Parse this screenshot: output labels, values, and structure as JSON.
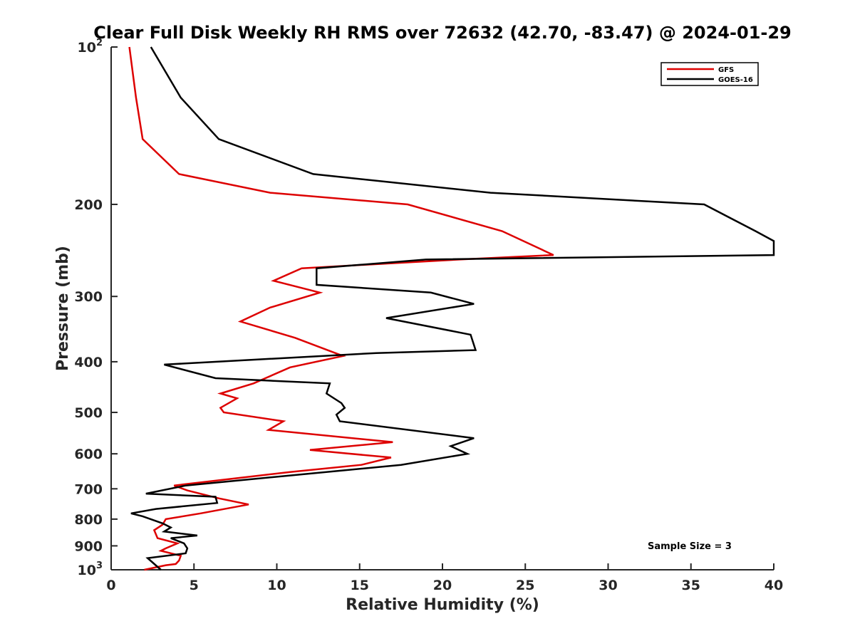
{
  "chart_data": {
    "type": "line",
    "title": "Clear Full Disk Weekly RH RMS over 72632 (42.70, -83.47) @ 2024-01-29",
    "xlabel": "Relative Humidity (%)",
    "ylabel": "Pressure (mb)",
    "xlim": [
      0,
      40
    ],
    "ylim": [
      100,
      1000
    ],
    "y_scale": "log",
    "y_reversed": true,
    "x_ticks": [
      0,
      5,
      10,
      15,
      20,
      25,
      30,
      35,
      40
    ],
    "y_ticks": [
      {
        "value": 100,
        "base": "10",
        "sup": "2"
      },
      {
        "value": 200,
        "label": "200"
      },
      {
        "value": 300,
        "label": "300"
      },
      {
        "value": 400,
        "label": "400"
      },
      {
        "value": 500,
        "label": "500"
      },
      {
        "value": 600,
        "label": "600"
      },
      {
        "value": 700,
        "label": "700"
      },
      {
        "value": 800,
        "label": "800"
      },
      {
        "value": 900,
        "label": "900"
      },
      {
        "value": 1000,
        "base": "10",
        "sup": "3"
      }
    ],
    "grid": false,
    "legend_position": "top-right",
    "annotation": "Sample Size = 3",
    "series": [
      {
        "name": "GFS",
        "color": "#dd0000",
        "points": [
          [
            1.1,
            100
          ],
          [
            1.5,
            125
          ],
          [
            1.9,
            150
          ],
          [
            4.1,
            175
          ],
          [
            9.6,
            190
          ],
          [
            17.9,
            200
          ],
          [
            23.6,
            225
          ],
          [
            26.7,
            250
          ],
          [
            21.0,
            255
          ],
          [
            11.5,
            265
          ],
          [
            9.8,
            280
          ],
          [
            12.6,
            295
          ],
          [
            9.6,
            315
          ],
          [
            7.8,
            335
          ],
          [
            11.1,
            360
          ],
          [
            14.0,
            390
          ],
          [
            10.8,
            410
          ],
          [
            8.6,
            440
          ],
          [
            6.6,
            460
          ],
          [
            7.6,
            470
          ],
          [
            6.6,
            490
          ],
          [
            6.8,
            500
          ],
          [
            10.4,
            520
          ],
          [
            9.5,
            540
          ],
          [
            17.0,
            570
          ],
          [
            12.0,
            590
          ],
          [
            16.9,
            610
          ],
          [
            15.1,
            630
          ],
          [
            10.8,
            650
          ],
          [
            3.8,
            690
          ],
          [
            4.6,
            705
          ],
          [
            6.5,
            730
          ],
          [
            8.3,
            750
          ],
          [
            5.4,
            780
          ],
          [
            3.3,
            800
          ],
          [
            3.1,
            820
          ],
          [
            2.6,
            840
          ],
          [
            2.8,
            870
          ],
          [
            4.0,
            890
          ],
          [
            3.3,
            910
          ],
          [
            3.0,
            920
          ],
          [
            4.2,
            940
          ],
          [
            4.1,
            960
          ],
          [
            3.9,
            975
          ],
          [
            3.3,
            980
          ],
          [
            2.0,
            1000
          ]
        ]
      },
      {
        "name": "GOES-16",
        "color": "#000000",
        "points": [
          [
            2.4,
            100
          ],
          [
            4.2,
            125
          ],
          [
            6.5,
            150
          ],
          [
            12.2,
            175
          ],
          [
            22.9,
            190
          ],
          [
            35.8,
            200
          ],
          [
            38.9,
            225
          ],
          [
            40.0,
            235
          ],
          [
            40.0,
            250
          ],
          [
            19.0,
            255
          ],
          [
            12.4,
            265
          ],
          [
            12.4,
            285
          ],
          [
            19.3,
            295
          ],
          [
            21.9,
            310
          ],
          [
            16.6,
            330
          ],
          [
            21.7,
            355
          ],
          [
            22.0,
            380
          ],
          [
            16.0,
            385
          ],
          [
            3.2,
            405
          ],
          [
            6.3,
            430
          ],
          [
            13.2,
            440
          ],
          [
            13.0,
            460
          ],
          [
            13.9,
            480
          ],
          [
            14.1,
            490
          ],
          [
            13.6,
            505
          ],
          [
            13.8,
            520
          ],
          [
            21.9,
            560
          ],
          [
            20.5,
            580
          ],
          [
            21.5,
            600
          ],
          [
            17.5,
            630
          ],
          [
            4.5,
            690
          ],
          [
            2.1,
            715
          ],
          [
            6.3,
            725
          ],
          [
            6.4,
            745
          ],
          [
            2.7,
            765
          ],
          [
            1.2,
            780
          ],
          [
            1.9,
            790
          ],
          [
            3.1,
            815
          ],
          [
            3.6,
            830
          ],
          [
            3.2,
            845
          ],
          [
            5.2,
            860
          ],
          [
            3.6,
            870
          ],
          [
            4.4,
            890
          ],
          [
            4.6,
            910
          ],
          [
            4.5,
            930
          ],
          [
            2.2,
            950
          ],
          [
            3.0,
            1000
          ]
        ]
      }
    ]
  }
}
